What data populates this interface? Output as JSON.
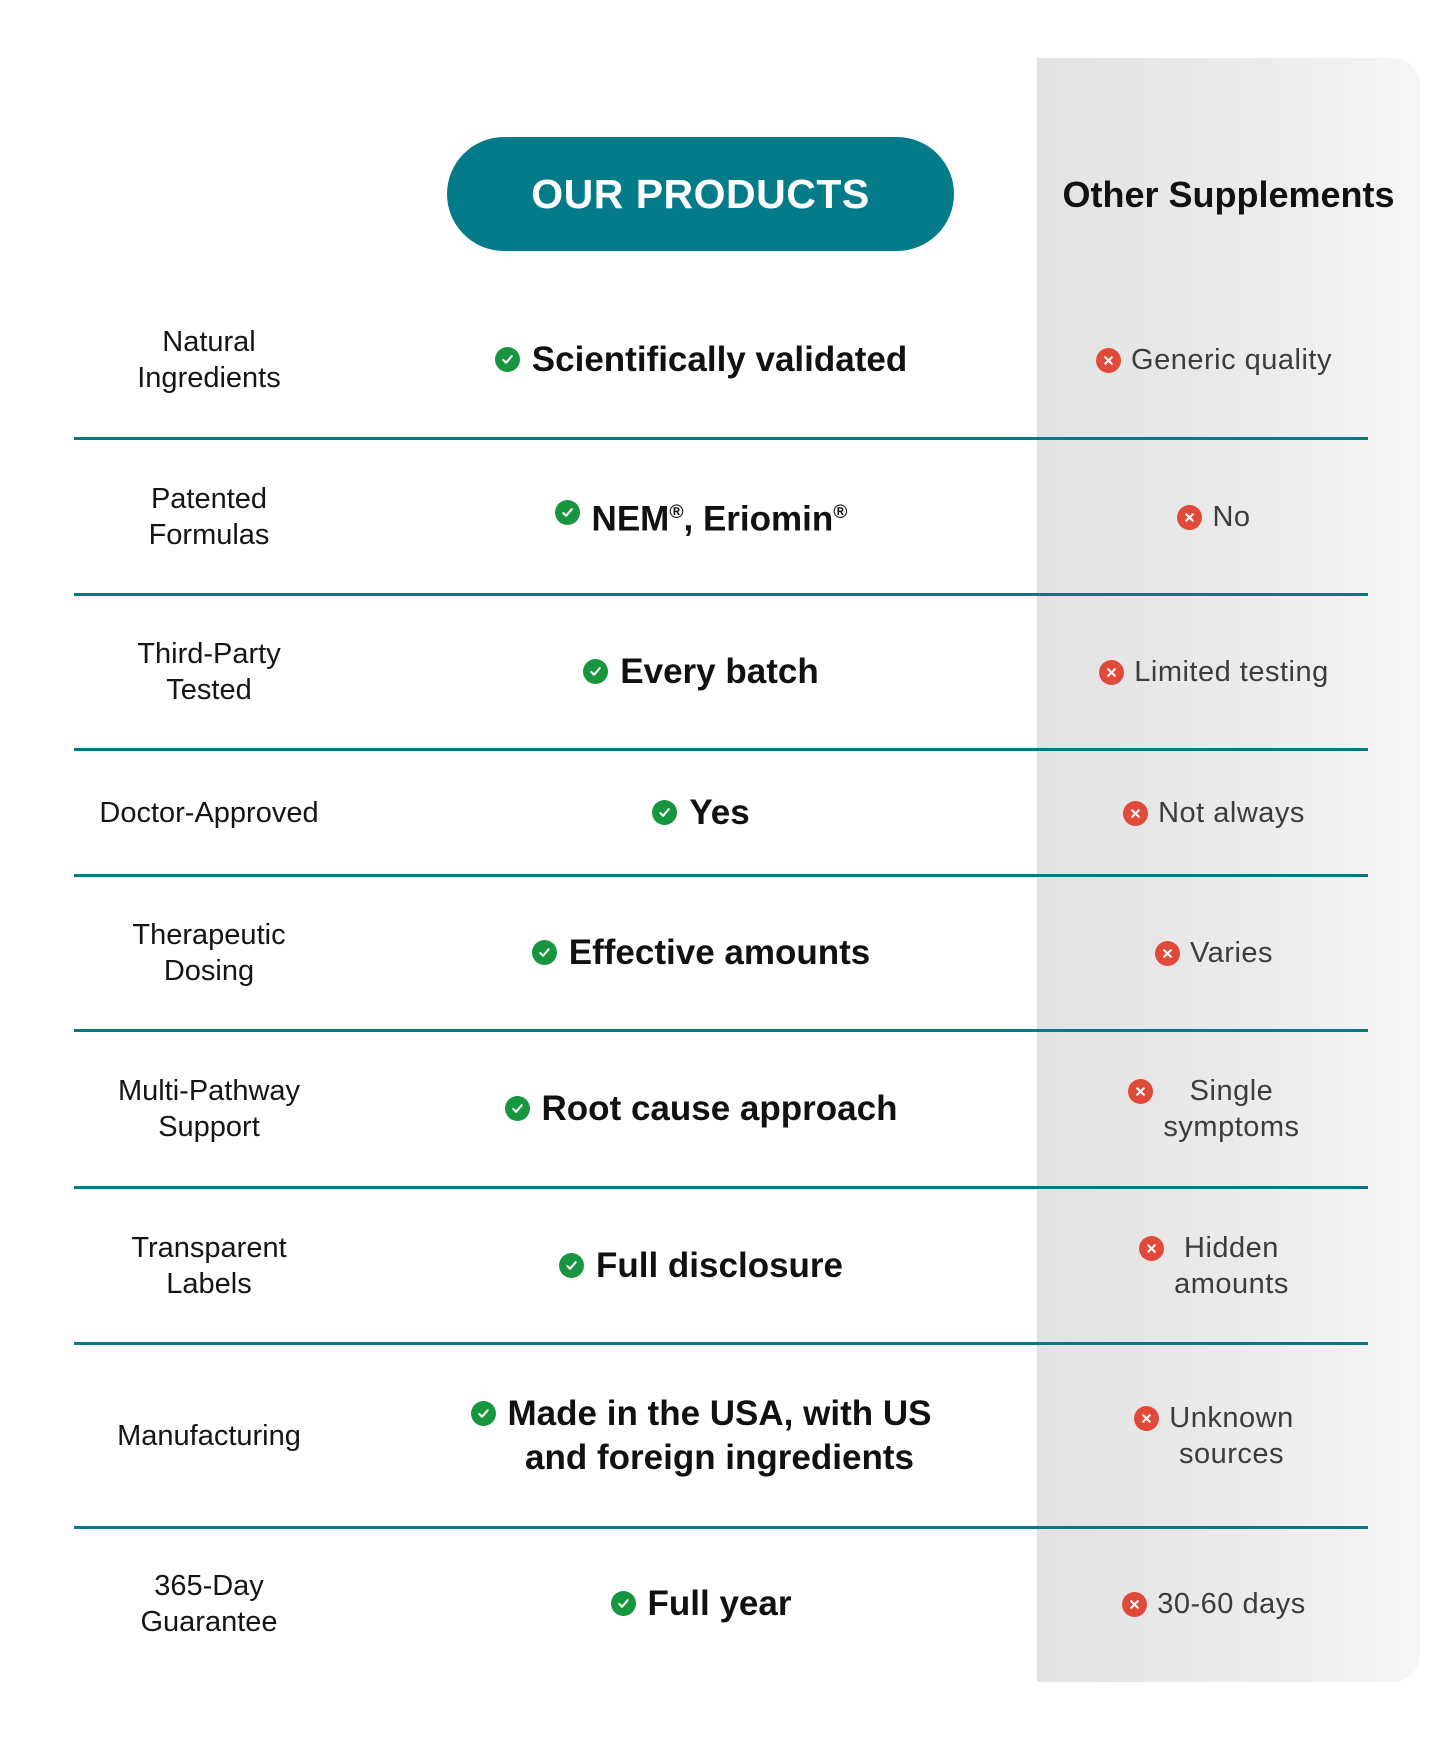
{
  "header": {
    "our_products": "OUR PRODUCTS",
    "other_supplements": "Other Supplements"
  },
  "colors": {
    "accent": "#037b88",
    "check": "#17963f",
    "cross": "#e04a3a",
    "other_bg": "#e6e6e6"
  },
  "icons": {
    "ours": "check-circle-icon",
    "others": "x-circle-icon"
  },
  "rows": [
    {
      "feature": "Natural Ingredients",
      "ours": "Scientifically validated",
      "others": "Generic quality"
    },
    {
      "feature": "Patented Formulas",
      "ours": "NEM®, Eriomin®",
      "others": "No"
    },
    {
      "feature": "Third-Party Tested",
      "ours": "Every batch",
      "others": "Limited testing"
    },
    {
      "feature": "Doctor-Approved",
      "ours": "Yes",
      "others": "Not always"
    },
    {
      "feature": "Therapeutic Dosing",
      "ours": "Effective amounts",
      "others": "Varies"
    },
    {
      "feature": "Multi-Pathway Support",
      "ours": "Root cause approach",
      "others": "Single symptoms"
    },
    {
      "feature": "Transparent Labels",
      "ours": "Full disclosure",
      "others": "Hidden amounts"
    },
    {
      "feature": "Manufacturing",
      "ours": "Made in the USA, with US and foreign ingredients",
      "others": "Unknown sources"
    },
    {
      "feature": "365-Day Guarantee",
      "ours": "Full year",
      "others": "30-60 days"
    }
  ]
}
